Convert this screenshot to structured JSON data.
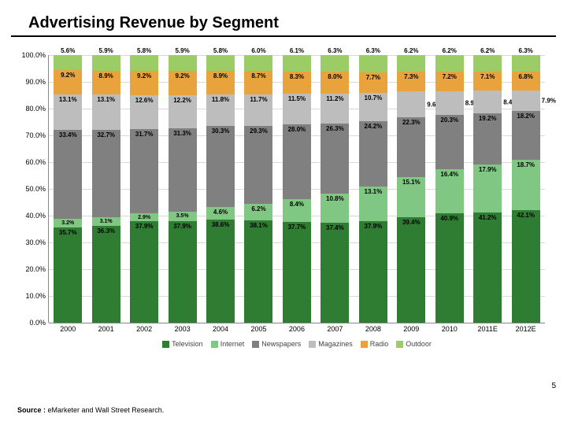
{
  "title": "Advertising Revenue by Segment",
  "page_number": "5",
  "source_label": "Source :",
  "source_text": "eMarketer and Wall Street Research.",
  "chart": {
    "type": "stacked-bar",
    "ylim": [
      0,
      100
    ],
    "ytick_step": 10,
    "y_suffix": "%",
    "background_color": "#ffffff",
    "grid_color": "#d9d9d9",
    "categories": [
      "2000",
      "2001",
      "2002",
      "2003",
      "2004",
      "2005",
      "2006",
      "2007",
      "2008",
      "2009",
      "2010",
      "2011E",
      "2012E"
    ],
    "series": [
      {
        "name": "Television",
        "color": "#2e7d32"
      },
      {
        "name": "Internet",
        "color": "#81c784"
      },
      {
        "name": "Newspapers",
        "color": "#808080"
      },
      {
        "name": "Magazines",
        "color": "#bdbdbd"
      },
      {
        "name": "Radio",
        "color": "#e8a33d"
      },
      {
        "name": "Outdoor",
        "color": "#9ccc65"
      }
    ],
    "stacks": [
      [
        35.7,
        3.2,
        33.4,
        13.1,
        9.2,
        5.6
      ],
      [
        36.3,
        3.1,
        32.7,
        13.1,
        8.9,
        5.9
      ],
      [
        37.9,
        2.9,
        31.7,
        12.6,
        9.2,
        5.8
      ],
      [
        37.9,
        3.5,
        31.3,
        12.2,
        9.2,
        5.9
      ],
      [
        38.6,
        4.6,
        30.3,
        11.8,
        8.9,
        5.8
      ],
      [
        38.1,
        6.2,
        29.3,
        11.7,
        8.7,
        6.0
      ],
      [
        37.7,
        8.4,
        28.0,
        11.5,
        8.3,
        6.1
      ],
      [
        37.4,
        10.8,
        26.3,
        11.2,
        8.0,
        6.3
      ],
      [
        37.9,
        13.1,
        24.2,
        10.7,
        7.7,
        6.3
      ],
      [
        39.4,
        15.1,
        22.3,
        9.6,
        7.3,
        6.2
      ],
      [
        40.9,
        16.4,
        20.3,
        8.9,
        7.2,
        6.2
      ],
      [
        41.2,
        17.9,
        19.2,
        8.4,
        7.1,
        6.2
      ],
      [
        42.1,
        18.7,
        18.2,
        7.9,
        6.8,
        6.3
      ]
    ],
    "label_fontsize": 8,
    "axis_fontsize": 9
  }
}
